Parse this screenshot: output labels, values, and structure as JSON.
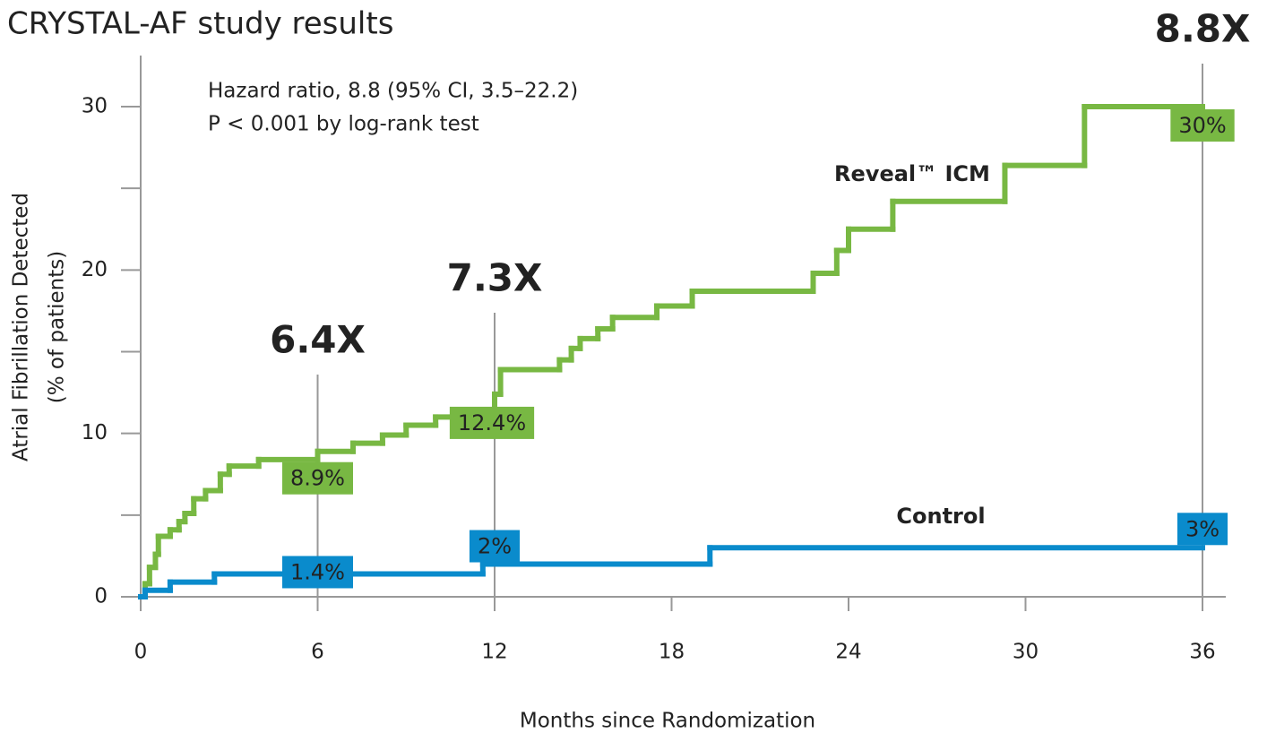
{
  "chart_data": {
    "type": "step",
    "title": "CRYSTAL-AF study results",
    "annotations": [
      "Hazard ratio, 8.8 (95% CI, 3.5–22.2)",
      "P < 0.001 by log-rank test"
    ],
    "xlabel": "Months since Randomization",
    "ylabel": [
      "Atrial Fibrillation Detected",
      "(% of patients)"
    ],
    "xlim": [
      0,
      36
    ],
    "xticks": [
      0,
      6,
      12,
      18,
      24,
      30,
      36
    ],
    "ylim": [
      0,
      30
    ],
    "yticks": [
      0,
      10,
      20,
      30
    ],
    "yminor_ticks": [
      5,
      15,
      25
    ],
    "series": [
      {
        "name": "Reveal™ ICM",
        "color": "#78b843",
        "x": [
          0,
          0.15,
          0.3,
          0.5,
          0.6,
          1.0,
          1.3,
          1.5,
          1.8,
          2.2,
          2.7,
          3.0,
          4.0,
          6.0,
          7.2,
          8.2,
          9.0,
          10.0,
          12.0,
          12.2,
          14.2,
          14.6,
          14.9,
          15.5,
          16.0,
          17.5,
          18.7,
          22.8,
          23.6,
          24.0,
          25.5,
          29.3,
          32.0,
          36
        ],
        "values": [
          0,
          0.8,
          1.8,
          2.6,
          3.7,
          4.1,
          4.6,
          5.1,
          6.0,
          6.5,
          7.5,
          8.0,
          8.4,
          8.9,
          9.4,
          9.9,
          10.5,
          11.0,
          12.4,
          13.9,
          14.5,
          15.2,
          15.8,
          16.4,
          17.1,
          17.8,
          18.7,
          19.8,
          21.2,
          22.5,
          24.2,
          26.4,
          30,
          30
        ],
        "callouts": [
          {
            "x": 6,
            "value": 8.9,
            "label": "8.9%"
          },
          {
            "x": 12,
            "value": 12.4,
            "label": "12.4%"
          },
          {
            "x": 36,
            "value": 30,
            "label": "30%"
          }
        ]
      },
      {
        "name": "Control",
        "color": "#0a8bcc",
        "x": [
          0,
          0.15,
          1.0,
          2.5,
          11.6,
          19.3,
          36
        ],
        "values": [
          0,
          0.4,
          0.9,
          1.4,
          2.0,
          3.0,
          3.0
        ],
        "callouts": [
          {
            "x": 6,
            "value": 1.4,
            "label": "1.4%"
          },
          {
            "x": 12,
            "value": 2,
            "label": "2%"
          },
          {
            "x": 36,
            "value": 3,
            "label": "3%"
          }
        ]
      }
    ],
    "ratios": [
      {
        "x": 6,
        "value": 6.4,
        "label": "6.4X"
      },
      {
        "x": 12,
        "value": 7.3,
        "label": "7.3X"
      },
      {
        "x": 36,
        "value": 8.8,
        "label": "8.8X"
      }
    ],
    "ratio_color": "#0b4f85",
    "axis_color": "#999999"
  }
}
